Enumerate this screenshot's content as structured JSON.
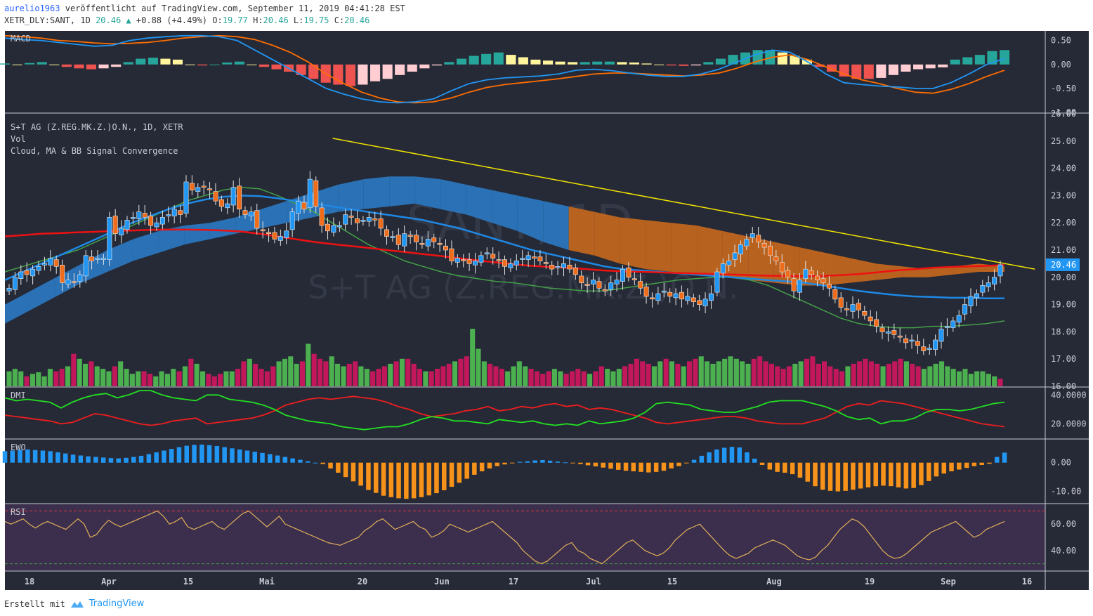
{
  "header": {
    "author": "aurelio1963",
    "published": "veröffentlicht auf TradingView.com, September 11, 2019 04:41:28 EST",
    "symbol": "XETR_DLY:SANT, 1D",
    "last": "20.46",
    "change": "+0.88 (+4.49%)",
    "o_label": "O:",
    "o": "19.77",
    "h_label": "H:",
    "h": "20.46",
    "l_label": "L:",
    "l": "19.75",
    "c_label": "C:",
    "c": "20.46"
  },
  "footer": {
    "created_with": "Erstellt mit",
    "brand": "TradingView"
  },
  "colors": {
    "bg": "#262a36",
    "text": "#c8cad3",
    "up": "#2196f3",
    "down": "#ef6c1a",
    "vol_up": "#4caf50",
    "vol_down": "#c2185b",
    "ma_red": "#ee1111",
    "ma_blue": "#1e88e5",
    "ma_green": "#43a047",
    "trend": "#f2e300",
    "cloud_bull": "#2a71b5",
    "cloud_bear": "#b8621f",
    "dmi_plus": "#22e022",
    "dmi_minus": "#ee1e1e",
    "ewo_pos": "#2196f3",
    "ewo_neg": "#f7931a",
    "rsi": "#e3b05a",
    "rsi_bg": "#3b2f4d"
  },
  "chart_data": {
    "type": "candlestick",
    "time_axis": [
      "18",
      "Apr",
      "15",
      "Mai",
      "20",
      "Jun",
      "17",
      "Jul",
      "15",
      "Aug",
      "19",
      "Sep",
      "16"
    ],
    "watermark": "SANT, 1D",
    "watermark_sub": "S+T AG (Z.REG.MK.Z.)O.N.",
    "last_price_label": "20.46",
    "main": {
      "legend": [
        "S+T AG (Z.REG.MK.Z.)O.N., 1D, XETR",
        "Vol",
        "Cloud, MA & BB Signal Convergence"
      ],
      "ylim": [
        16,
        26
      ],
      "ticks": [
        "26.00",
        "25.00",
        "24.00",
        "23.00",
        "22.00",
        "21.00",
        "20.00",
        "19.00",
        "18.00",
        "17.00",
        "16.00"
      ],
      "close": [
        19.6,
        20.0,
        20.2,
        20.1,
        20.3,
        20.4,
        20.5,
        20.7,
        20.4,
        19.8,
        19.9,
        19.8,
        20.1,
        20.8,
        20.6,
        20.7,
        20.7,
        22.2,
        21.6,
        21.8,
        22.1,
        22.2,
        22.4,
        22.2,
        21.9,
        22.0,
        22.2,
        22.3,
        22.5,
        22.3,
        23.5,
        23.2,
        23.3,
        23.3,
        23.2,
        22.8,
        22.6,
        22.7,
        23.3,
        22.5,
        22.3,
        22.4,
        21.8,
        21.7,
        21.6,
        21.4,
        21.5,
        21.7,
        22.4,
        22.8,
        22.5,
        23.6,
        22.6,
        21.9,
        21.7,
        21.9,
        21.9,
        22.3,
        22.2,
        22.0,
        22.1,
        22.2,
        22.1,
        21.8,
        21.5,
        21.5,
        21.2,
        21.6,
        21.5,
        21.3,
        21.2,
        21.4,
        21.3,
        21.2,
        21.0,
        20.6,
        20.7,
        20.6,
        20.5,
        20.6,
        20.8,
        20.9,
        20.7,
        20.6,
        20.4,
        20.5,
        20.6,
        20.7,
        20.8,
        20.7,
        20.6,
        20.5,
        20.3,
        20.4,
        20.5,
        20.3,
        20.1,
        19.8,
        19.7,
        19.9,
        19.6,
        19.5,
        19.8,
        19.9,
        20.3,
        20.0,
        19.9,
        19.6,
        19.3,
        19.2,
        19.4,
        19.5,
        19.3,
        19.4,
        19.2,
        19.3,
        19.1,
        19.0,
        19.2,
        19.4,
        20.2,
        20.5,
        20.6,
        20.9,
        21.2,
        21.4,
        21.6,
        21.3,
        21.1,
        20.8,
        20.6,
        20.2,
        20.0,
        19.5,
        19.9,
        20.3,
        20.1,
        19.9,
        19.8,
        19.6,
        19.2,
        18.9,
        18.8,
        19.0,
        18.8,
        18.6,
        18.4,
        18.2,
        18.0,
        18.0,
        17.9,
        17.8,
        17.6,
        17.7,
        17.5,
        17.3,
        17.4,
        17.7,
        18.1,
        18.2,
        18.4,
        18.6,
        19.0,
        19.3,
        19.4,
        19.7,
        19.8,
        20.0,
        20.46
      ],
      "ma_red": [
        21.5,
        21.55,
        21.6,
        21.62,
        21.65,
        21.67,
        21.7,
        21.72,
        21.74,
        21.75,
        21.75,
        21.74,
        21.72,
        21.68,
        21.6,
        21.5,
        21.4,
        21.3,
        21.22,
        21.15,
        21.08,
        21.0,
        20.93,
        20.85,
        20.78,
        20.7,
        20.62,
        20.55,
        20.48,
        20.42,
        20.38,
        20.35,
        20.3,
        20.25,
        20.22,
        20.2,
        20.18,
        20.16,
        20.14,
        20.12,
        20.1,
        20.08,
        20.06,
        20.05,
        20.04,
        20.05,
        20.08,
        20.12,
        20.18,
        20.25,
        20.3,
        20.35,
        20.38,
        20.4,
        20.42,
        20.45
      ],
      "ma_blue": [
        19.9,
        20.2,
        20.5,
        20.8,
        21.1,
        21.4,
        21.7,
        22.0,
        22.25,
        22.5,
        22.7,
        22.85,
        22.95,
        23.0,
        22.98,
        22.9,
        22.8,
        22.7,
        22.6,
        22.5,
        22.4,
        22.3,
        22.2,
        22.1,
        21.95,
        21.8,
        21.6,
        21.4,
        21.2,
        21.0,
        20.85,
        20.7,
        20.55,
        20.4,
        20.3,
        20.25,
        20.2,
        20.15,
        20.1,
        20.05,
        20.0,
        19.95,
        19.9,
        19.85,
        19.8,
        19.7,
        19.6,
        19.5,
        19.42,
        19.35,
        19.3,
        19.28,
        19.25,
        19.25,
        19.23,
        19.23
      ],
      "ma_green": [
        20.2,
        20.4,
        20.6,
        20.8,
        21.0,
        21.3,
        21.6,
        21.9,
        22.2,
        22.5,
        22.8,
        23.0,
        23.2,
        23.3,
        23.25,
        23.0,
        22.7,
        22.4,
        22.0,
        21.6,
        21.2,
        20.9,
        20.6,
        20.4,
        20.2,
        20.05,
        19.95,
        19.85,
        19.8,
        19.7,
        19.6,
        19.55,
        19.5,
        19.5,
        19.6,
        19.7,
        19.8,
        19.9,
        19.95,
        20.0,
        20.0,
        19.9,
        19.7,
        19.4,
        19.1,
        18.8,
        18.5,
        18.3,
        18.2,
        18.15,
        18.15,
        18.2,
        18.2,
        18.25,
        18.3,
        18.4
      ],
      "trendline": {
        "from": [
          0.21,
          25.1
        ],
        "to": [
          0.99,
          20.3
        ]
      },
      "cloud_upper": [
        19.0,
        19.5,
        20.0,
        20.5,
        21.0,
        21.4,
        21.7,
        21.9,
        22.0,
        22.2,
        22.5,
        22.8,
        23.1,
        23.4,
        23.6,
        23.7,
        23.7,
        23.6,
        23.4,
        23.2,
        23.0,
        22.8,
        22.6,
        22.4,
        22.2,
        22.1,
        22.0,
        21.9,
        21.7,
        21.5,
        21.3,
        21.1,
        20.9,
        20.7,
        20.5,
        20.4,
        20.3,
        20.4,
        20.5,
        20.4
      ],
      "cloud_lower": [
        18.3,
        18.8,
        19.3,
        19.8,
        20.2,
        20.6,
        20.9,
        21.2,
        21.4,
        21.6,
        21.8,
        22.0,
        22.2,
        22.4,
        22.5,
        22.6,
        22.7,
        22.5,
        22.3,
        22.0,
        21.7,
        21.3,
        21.0,
        20.8,
        20.5,
        20.3,
        20.2,
        20.1,
        20.0,
        19.9,
        19.8,
        19.7,
        19.7,
        19.8,
        19.9,
        20.0,
        20.0,
        20.1,
        20.2,
        20.2
      ],
      "volume_rel": [
        0.3,
        0.35,
        0.3,
        0.2,
        0.25,
        0.28,
        0.2,
        0.35,
        0.3,
        0.35,
        0.4,
        0.65,
        0.55,
        0.45,
        0.5,
        0.4,
        0.35,
        0.3,
        0.4,
        0.5,
        0.35,
        0.25,
        0.3,
        0.3,
        0.25,
        0.2,
        0.3,
        0.25,
        0.35,
        0.3,
        0.4,
        0.55,
        0.45,
        0.3,
        0.25,
        0.2,
        0.25,
        0.3,
        0.3,
        0.35,
        0.5,
        0.55,
        0.45,
        0.35,
        0.3,
        0.4,
        0.5,
        0.55,
        0.6,
        0.45,
        0.5,
        0.85,
        0.65,
        0.55,
        0.5,
        0.6,
        0.45,
        0.4,
        0.45,
        0.5,
        0.4,
        0.35,
        0.3,
        0.35,
        0.4,
        0.45,
        0.5,
        0.55,
        0.55,
        0.45,
        0.35,
        0.3,
        0.3,
        0.35,
        0.4,
        0.45,
        0.5,
        0.55,
        0.6,
        1.15,
        0.75,
        0.5,
        0.45,
        0.4,
        0.35,
        0.3,
        0.4,
        0.5,
        0.4,
        0.35,
        0.3,
        0.25,
        0.3,
        0.35,
        0.3,
        0.25,
        0.3,
        0.35,
        0.3,
        0.25,
        0.3,
        0.4,
        0.35,
        0.3,
        0.35,
        0.4,
        0.45,
        0.55,
        0.5,
        0.45,
        0.4,
        0.5,
        0.55,
        0.5,
        0.45,
        0.4,
        0.5,
        0.55,
        0.6,
        0.5,
        0.45,
        0.5,
        0.55,
        0.6,
        0.55,
        0.5,
        0.45,
        0.55,
        0.6,
        0.5,
        0.45,
        0.4,
        0.35,
        0.4,
        0.45,
        0.5,
        0.55,
        0.6,
        0.45,
        0.5,
        0.4,
        0.35,
        0.3,
        0.4,
        0.45,
        0.5,
        0.55,
        0.5,
        0.45,
        0.4,
        0.45,
        0.5,
        0.55,
        0.5,
        0.45,
        0.4,
        0.35,
        0.4,
        0.45,
        0.5,
        0.4,
        0.35,
        0.3,
        0.35,
        0.25,
        0.3,
        0.3,
        0.25,
        0.2,
        0.15
      ]
    },
    "macd": {
      "legend": "MACD",
      "ylim": [
        -1.0,
        0.7
      ],
      "ticks": [
        "0.50",
        "0.00",
        "-0.50",
        "-1.00"
      ],
      "macd": [
        0.55,
        0.52,
        0.5,
        0.46,
        0.42,
        0.38,
        0.4,
        0.5,
        0.55,
        0.58,
        0.6,
        0.6,
        0.58,
        0.5,
        0.3,
        0.1,
        -0.1,
        -0.3,
        -0.5,
        -0.62,
        -0.72,
        -0.78,
        -0.8,
        -0.78,
        -0.72,
        -0.55,
        -0.4,
        -0.32,
        -0.28,
        -0.26,
        -0.24,
        -0.2,
        -0.12,
        -0.1,
        -0.13,
        -0.18,
        -0.22,
        -0.25,
        -0.25,
        -0.2,
        -0.1,
        0.05,
        0.2,
        0.3,
        0.25,
        0.05,
        -0.2,
        -0.38,
        -0.42,
        -0.45,
        -0.47,
        -0.5,
        -0.5,
        -0.38,
        -0.2,
        0.0,
        0.12
      ],
      "signal": [
        0.6,
        0.58,
        0.55,
        0.5,
        0.48,
        0.45,
        0.43,
        0.44,
        0.46,
        0.5,
        0.55,
        0.58,
        0.6,
        0.58,
        0.52,
        0.4,
        0.25,
        0.05,
        -0.2,
        -0.4,
        -0.58,
        -0.7,
        -0.78,
        -0.8,
        -0.78,
        -0.7,
        -0.58,
        -0.48,
        -0.42,
        -0.38,
        -0.34,
        -0.3,
        -0.25,
        -0.2,
        -0.18,
        -0.18,
        -0.2,
        -0.22,
        -0.24,
        -0.22,
        -0.18,
        -0.08,
        0.05,
        0.15,
        0.2,
        0.1,
        -0.05,
        -0.2,
        -0.32,
        -0.4,
        -0.5,
        -0.58,
        -0.6,
        -0.52,
        -0.4,
        -0.25,
        -0.12
      ],
      "histogram": [
        0.02,
        0.0,
        0.03,
        0.05,
        0.0,
        -0.05,
        -0.08,
        -0.1,
        -0.08,
        -0.05,
        0.05,
        0.12,
        0.14,
        0.12,
        0.1,
        0.0,
        -0.02,
        0.0,
        0.04,
        0.06,
        0.0,
        -0.05,
        -0.1,
        -0.15,
        -0.22,
        -0.3,
        -0.38,
        -0.42,
        -0.45,
        -0.42,
        -0.35,
        -0.3,
        -0.22,
        -0.15,
        -0.08,
        -0.02,
        0.05,
        0.12,
        0.18,
        0.22,
        0.25,
        0.2,
        0.15,
        0.1,
        0.08,
        0.06,
        0.05,
        0.05,
        0.06,
        0.06,
        0.05,
        0.04,
        0.02,
        0.0,
        -0.02,
        -0.03,
        -0.02,
        0.05,
        0.12,
        0.2,
        0.25,
        0.3,
        0.3,
        0.25,
        0.18,
        0.1,
        -0.05,
        -0.15,
        -0.25,
        -0.3,
        -0.3,
        -0.28,
        -0.22,
        -0.15,
        -0.1,
        -0.08,
        -0.06,
        0.1,
        0.15,
        0.2,
        0.28,
        0.3
      ]
    },
    "dmi": {
      "legend": "DMI",
      "ylim": [
        10,
        45
      ],
      "ticks": [
        "40.0000",
        "20.0000"
      ],
      "plus": [
        38,
        36,
        37,
        36,
        35,
        31,
        35,
        38,
        40,
        41,
        38,
        40,
        43,
        43,
        40,
        38,
        37,
        36,
        40,
        40,
        37,
        36,
        35,
        33,
        30,
        26,
        24,
        22,
        21,
        20,
        18,
        17,
        16,
        17,
        18,
        18,
        20,
        23,
        25,
        24,
        22,
        22,
        21,
        20,
        23,
        22,
        21,
        22,
        20,
        19,
        20,
        19,
        22,
        20,
        21,
        22,
        24,
        28,
        34,
        35,
        34,
        33,
        30,
        29,
        28,
        28,
        30,
        32,
        35,
        36,
        36,
        36,
        34,
        32,
        29,
        25,
        23,
        24,
        20,
        22,
        22,
        24,
        28,
        30,
        30,
        29,
        30,
        32,
        34,
        35
      ],
      "minus": [
        26,
        25,
        24,
        23,
        22,
        20,
        21,
        24,
        27,
        26,
        24,
        22,
        20,
        19,
        20,
        22,
        23,
        24,
        20,
        21,
        22,
        23,
        24,
        26,
        29,
        33,
        35,
        37,
        38,
        37,
        38,
        39,
        38,
        37,
        35,
        32,
        30,
        27,
        25,
        26,
        27,
        29,
        30,
        32,
        29,
        30,
        32,
        31,
        33,
        34,
        32,
        33,
        30,
        31,
        30,
        28,
        26,
        24,
        21,
        20,
        21,
        22,
        23,
        24,
        25,
        25,
        24,
        22,
        21,
        20,
        20,
        20,
        22,
        24,
        28,
        32,
        34,
        33,
        36,
        35,
        34,
        32,
        30,
        28,
        26,
        24,
        22,
        20,
        19,
        18
      ]
    },
    "ewo": {
      "legend": "EWO",
      "ylim": [
        -14,
        8
      ],
      "ticks": [
        "0.00",
        "-10.00"
      ],
      "values": [
        4.0,
        4.2,
        4.5,
        4.6,
        4.4,
        4.2,
        4.0,
        3.6,
        3.2,
        2.8,
        2.5,
        2.2,
        2.0,
        1.8,
        1.6,
        1.5,
        1.7,
        2.0,
        2.4,
        3.0,
        3.6,
        4.2,
        4.8,
        5.4,
        5.9,
        6.2,
        6.3,
        6.1,
        5.8,
        5.4,
        5.0,
        4.6,
        4.2,
        3.8,
        3.4,
        3.0,
        2.5,
        2.0,
        1.5,
        1.0,
        0.5,
        0.0,
        -0.5,
        -2.0,
        -3.5,
        -5.0,
        -6.5,
        -8.0,
        -9.5,
        -10.5,
        -11.5,
        -12.0,
        -12.4,
        -12.6,
        -12.4,
        -12.0,
        -11.4,
        -10.6,
        -9.6,
        -8.4,
        -7.0,
        -5.6,
        -4.2,
        -3.0,
        -2.0,
        -1.2,
        -0.6,
        -0.2,
        0.3,
        0.5,
        0.8,
        0.9,
        0.7,
        0.4,
        0.1,
        -0.2,
        -0.5,
        -0.9,
        -1.3,
        -1.7,
        -2.1,
        -2.5,
        -2.8,
        -3.0,
        -3.2,
        -3.4,
        -3.2,
        -2.8,
        -2.0,
        -1.2,
        -0.2,
        1.0,
        2.4,
        3.6,
        4.6,
        5.2,
        5.5,
        5.3,
        3.6,
        1.4,
        -0.8,
        -2.4,
        -3.2,
        -3.5,
        -4.0,
        -5.2,
        -6.6,
        -8.2,
        -9.4,
        -9.8,
        -10.0,
        -9.8,
        -9.4,
        -9.0,
        -8.6,
        -8.2,
        -8.0,
        -8.2,
        -8.6,
        -9.0,
        -8.8,
        -7.8,
        -6.4,
        -4.8,
        -3.8,
        -3.0,
        -2.4,
        -1.8,
        -1.2,
        -0.8,
        -0.4,
        2.0,
        3.5
      ]
    },
    "rsi": {
      "legend": "RSI",
      "ylim": [
        25,
        75
      ],
      "ticks": [
        "60.00",
        "40.00"
      ],
      "bands": [
        70,
        30
      ],
      "values": [
        62,
        60,
        62,
        64,
        60,
        57,
        60,
        62,
        60,
        58,
        56,
        60,
        64,
        60,
        50,
        52,
        58,
        63,
        60,
        58,
        60,
        62,
        64,
        66,
        68,
        70,
        66,
        60,
        62,
        65,
        58,
        56,
        58,
        60,
        62,
        58,
        56,
        60,
        64,
        68,
        70,
        66,
        62,
        58,
        62,
        66,
        60,
        58,
        56,
        54,
        52,
        50,
        48,
        46,
        45,
        44,
        46,
        48,
        50,
        55,
        58,
        62,
        64,
        60,
        56,
        58,
        60,
        62,
        58,
        56,
        50,
        52,
        55,
        60,
        58,
        56,
        54,
        56,
        58,
        60,
        62,
        58,
        54,
        50,
        46,
        40,
        36,
        32,
        30,
        32,
        36,
        40,
        44,
        46,
        40,
        38,
        34,
        32,
        30,
        34,
        38,
        42,
        46,
        48,
        44,
        40,
        38,
        36,
        38,
        42,
        48,
        52,
        56,
        58,
        60,
        55,
        50,
        45,
        40,
        36,
        34,
        36,
        38,
        42,
        44,
        46,
        48,
        46,
        44,
        40,
        36,
        34,
        33,
        35,
        40,
        44,
        50,
        56,
        60,
        64,
        62,
        58,
        52,
        46,
        40,
        36,
        34,
        35,
        38,
        42,
        46,
        50,
        54,
        56,
        58,
        60,
        62,
        58,
        54,
        50,
        52,
        56,
        58,
        60,
        62
      ]
    }
  }
}
